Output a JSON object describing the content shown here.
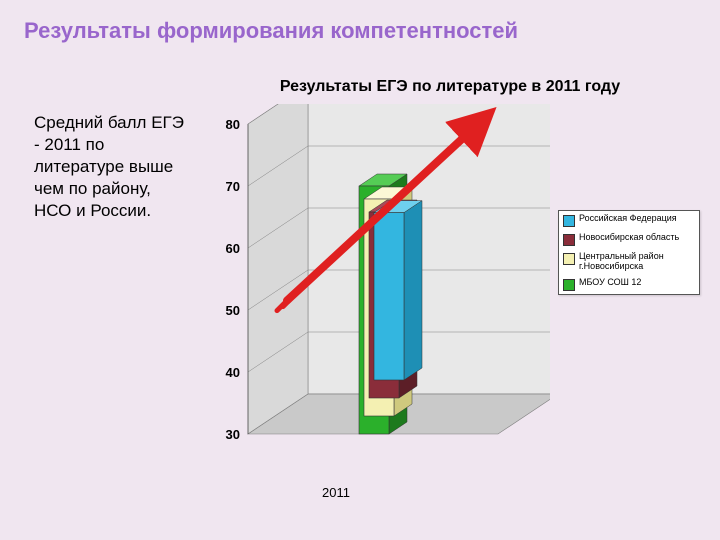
{
  "title": "Результаты формирования компетентностей",
  "body_text": "Средний балл ЕГЭ - 2011 по литературе выше чем по району, НСО и России.",
  "chart": {
    "type": "3d-bar",
    "title": "Результаты ЕГЭ по литературе в 2011 году",
    "xaxis_label": "2011",
    "ylim": [
      30,
      80
    ],
    "ytick_step": 10,
    "yticks": [
      30,
      40,
      50,
      60,
      70,
      80
    ],
    "background_color": "#ffffff",
    "floor_color": "#c9c9c9",
    "wall_color_left": "#d9d9d9",
    "wall_color_back": "#e8e8e8",
    "grid_color": "#808080",
    "axis_font_size": 13,
    "axis_font_weight": "bold",
    "title_fontsize": 16,
    "series": [
      {
        "label": "Российская Федерация",
        "value": 57,
        "color_front": "#33b6e0",
        "color_side": "#1e8fb5",
        "color_top": "#6ed0ee"
      },
      {
        "label": "Новосибирская область",
        "value": 60,
        "color_front": "#8a2d3a",
        "color_side": "#5c1e27",
        "color_top": "#a94a58"
      },
      {
        "label": "Центральный район г.Новосибирска",
        "value": 65,
        "color_front": "#f4f0b2",
        "color_side": "#cfc97e",
        "color_top": "#fbf8d5"
      },
      {
        "label": "МБОУ   СОШ 12",
        "value": 70,
        "color_front": "#2bb02b",
        "color_side": "#1d7a1d",
        "color_top": "#55cc55"
      }
    ],
    "arrow": {
      "color": "#e02020",
      "stroke_width": 8
    }
  }
}
